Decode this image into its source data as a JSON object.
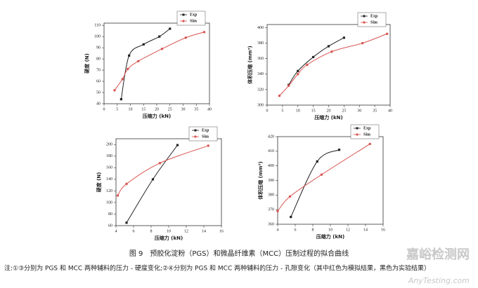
{
  "chart_data": [
    {
      "type": "line",
      "x_label": "压缩力 (kN)",
      "y_label": "硬度 (N)",
      "xlim": [
        0,
        40
      ],
      "xticks": [
        0,
        5,
        10,
        15,
        20,
        25,
        30,
        35,
        40
      ],
      "ylim": [
        40,
        112
      ],
      "yticks": [
        40,
        50,
        60,
        70,
        80,
        90,
        100,
        110
      ],
      "legend": "top-right",
      "series": [
        {
          "name": "Exp",
          "color": "#222222",
          "marker": "square",
          "x": [
            6.5,
            9.5,
            15,
            21,
            25
          ],
          "values": [
            44,
            83,
            93,
            100,
            107
          ]
        },
        {
          "name": "Sim",
          "color": "#d9534f",
          "marker": "circle",
          "x": [
            4,
            7,
            9,
            13,
            22,
            31,
            38
          ],
          "values": [
            52,
            62,
            71,
            78,
            89,
            99,
            104
          ]
        }
      ]
    },
    {
      "type": "line",
      "x_label": "压缩力 (kN)",
      "y_label": "体积压缩 (mm³)",
      "xlim": [
        0,
        40
      ],
      "xticks": [
        0,
        5,
        10,
        15,
        20,
        25,
        30,
        35,
        40
      ],
      "ylim": [
        300,
        404
      ],
      "yticks": [
        300,
        320,
        340,
        360,
        380,
        400
      ],
      "legend": "top-right",
      "series": [
        {
          "name": "Exp",
          "color": "#222222",
          "marker": "square",
          "x": [
            7,
            10,
            15,
            20,
            25
          ],
          "values": [
            326,
            344,
            362,
            376,
            387
          ]
        },
        {
          "name": "Sim",
          "color": "#d9534f",
          "marker": "circle",
          "x": [
            4,
            7,
            10,
            13,
            21,
            31,
            39
          ],
          "values": [
            312,
            325,
            340,
            352,
            369,
            380,
            392
          ]
        }
      ]
    },
    {
      "type": "line",
      "x_label": "压缩力 (kN)",
      "y_label": "硬度 (N)",
      "xlim": [
        4,
        16
      ],
      "xticks": [
        4,
        6,
        8,
        10,
        12,
        14,
        16
      ],
      "ylim": [
        60,
        210
      ],
      "yticks": [
        60,
        80,
        100,
        120,
        140,
        160,
        180,
        200
      ],
      "legend": "top-right",
      "series": [
        {
          "name": "Exp",
          "color": "#222222",
          "marker": "square",
          "x": [
            5.2,
            8.2,
            11
          ],
          "values": [
            65,
            140,
            199
          ]
        },
        {
          "name": "Sim",
          "color": "#d9534f",
          "marker": "circle",
          "x": [
            4.2,
            5.2,
            9,
            14.5
          ],
          "values": [
            112,
            132,
            168,
            198
          ]
        }
      ]
    },
    {
      "type": "line",
      "x_label": "压缩力 (kN)",
      "y_label": "体积压缩 (mm³)",
      "xlim": [
        4,
        16
      ],
      "xticks": [
        4,
        6,
        8,
        10,
        12,
        14,
        16
      ],
      "ylim": [
        360,
        420
      ],
      "yticks": [
        360,
        370,
        380,
        390,
        400,
        410,
        420
      ],
      "legend": "top-right",
      "series": [
        {
          "name": "Exp",
          "color": "#222222",
          "marker": "square",
          "x": [
            5.5,
            8.5,
            11
          ],
          "values": [
            365,
            403,
            411
          ]
        },
        {
          "name": "Sim",
          "color": "#d9534f",
          "marker": "circle",
          "x": [
            4,
            5.4,
            9,
            14.5
          ],
          "values": [
            369,
            379,
            394,
            415
          ]
        }
      ]
    }
  ],
  "caption": "图 9　预胶化淀粉（PGS）和微晶纤维素（MCC）压制过程的拟合曲线",
  "note": "注:①③分别为 PGS 和 MCC 两种辅料的压力 - 硬度变化;②④分别为 PGS 和 MCC 两种辅料的压力 - 孔隙变化（其中红色为模拟结果，黑色为实验结果）",
  "watermark": {
    "title": "嘉峪检测网",
    "url": "AnyTesting.com"
  }
}
